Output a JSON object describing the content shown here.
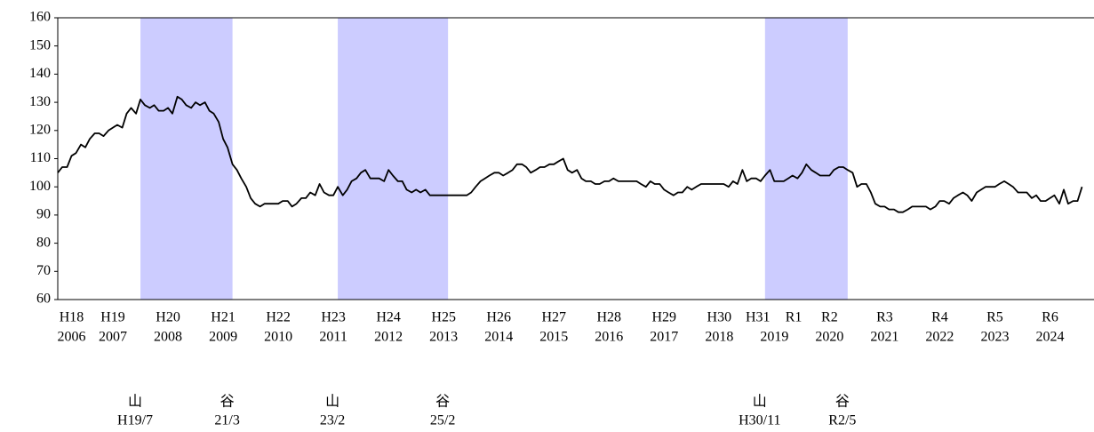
{
  "chart_data": {
    "type": "line",
    "xlim": [
      2006,
      2024.75
    ],
    "ylim": [
      60,
      160
    ],
    "yticks": [
      60,
      70,
      80,
      90,
      100,
      110,
      120,
      130,
      140,
      150,
      160
    ],
    "xticks": [
      {
        "value": 2006.25,
        "label": "2006"
      },
      {
        "value": 2007,
        "label": "2007"
      },
      {
        "value": 2008,
        "label": "2008"
      },
      {
        "value": 2009,
        "label": "2009"
      },
      {
        "value": 2010,
        "label": "2010"
      },
      {
        "value": 2011,
        "label": "2011"
      },
      {
        "value": 2012,
        "label": "2012"
      },
      {
        "value": 2013,
        "label": "2013"
      },
      {
        "value": 2014,
        "label": "2014"
      },
      {
        "value": 2015,
        "label": "2015"
      },
      {
        "value": 2016,
        "label": "2016"
      },
      {
        "value": 2017,
        "label": "2017"
      },
      {
        "value": 2018,
        "label": "2018"
      },
      {
        "value": 2019,
        "label": "2019"
      },
      {
        "value": 2020,
        "label": "2020"
      },
      {
        "value": 2021,
        "label": "2021"
      },
      {
        "value": 2022,
        "label": "2022"
      },
      {
        "value": 2023,
        "label": "2023"
      },
      {
        "value": 2024,
        "label": "2024"
      }
    ],
    "era_ticks": [
      {
        "value": 2006.25,
        "label": "H18"
      },
      {
        "value": 2007,
        "label": "H19"
      },
      {
        "value": 2008,
        "label": "H20"
      },
      {
        "value": 2009,
        "label": "H21"
      },
      {
        "value": 2010,
        "label": "H22"
      },
      {
        "value": 2011,
        "label": "H23"
      },
      {
        "value": 2012,
        "label": "H24"
      },
      {
        "value": 2013,
        "label": "H25"
      },
      {
        "value": 2014,
        "label": "H26"
      },
      {
        "value": 2015,
        "label": "H27"
      },
      {
        "value": 2016,
        "label": "H28"
      },
      {
        "value": 2017,
        "label": "H29"
      },
      {
        "value": 2018,
        "label": "H30"
      },
      {
        "value": 2018.7,
        "label": "H31"
      },
      {
        "value": 2019.35,
        "label": "R1"
      },
      {
        "value": 2020,
        "label": "R2"
      },
      {
        "value": 2021,
        "label": "R3"
      },
      {
        "value": 2022,
        "label": "R4"
      },
      {
        "value": 2023,
        "label": "R5"
      },
      {
        "value": 2024,
        "label": "R6"
      }
    ],
    "shaded_periods": [
      {
        "start": 2007.5,
        "end": 2009.17,
        "start_mark": "山",
        "start_label": "H19/7",
        "end_mark": "谷",
        "end_label": "21/3"
      },
      {
        "start": 2011.08,
        "end": 2013.08,
        "start_mark": "山",
        "start_label": "23/2",
        "end_mark": "谷",
        "end_label": "25/2"
      },
      {
        "start": 2018.83,
        "end": 2020.33,
        "start_mark": "山",
        "start_label": "H30/11",
        "end_mark": "谷",
        "end_label": "R2/5"
      }
    ],
    "shade_color": "#ccccff",
    "series": [
      {
        "color": "#000000",
        "x": [
          2006,
          2006.08,
          2006.17,
          2006.25,
          2006.33,
          2006.42,
          2006.5,
          2006.58,
          2006.67,
          2006.75,
          2006.83,
          2006.92,
          2007,
          2007.08,
          2007.17,
          2007.25,
          2007.33,
          2007.42,
          2007.5,
          2007.58,
          2007.67,
          2007.75,
          2007.83,
          2007.92,
          2008,
          2008.08,
          2008.17,
          2008.25,
          2008.33,
          2008.42,
          2008.5,
          2008.58,
          2008.67,
          2008.75,
          2008.83,
          2008.92,
          2009,
          2009.08,
          2009.17,
          2009.25,
          2009.33,
          2009.42,
          2009.5,
          2009.58,
          2009.67,
          2009.75,
          2009.83,
          2009.92,
          2010,
          2010.08,
          2010.17,
          2010.25,
          2010.33,
          2010.42,
          2010.5,
          2010.58,
          2010.67,
          2010.75,
          2010.83,
          2010.92,
          2011,
          2011.08,
          2011.17,
          2011.25,
          2011.33,
          2011.42,
          2011.5,
          2011.58,
          2011.67,
          2011.75,
          2011.83,
          2011.92,
          2012,
          2012.08,
          2012.17,
          2012.25,
          2012.33,
          2012.42,
          2012.5,
          2012.58,
          2012.67,
          2012.75,
          2012.83,
          2012.92,
          2013,
          2013.08,
          2013.17,
          2013.25,
          2013.33,
          2013.42,
          2013.5,
          2013.58,
          2013.67,
          2013.75,
          2013.83,
          2013.92,
          2014,
          2014.08,
          2014.17,
          2014.25,
          2014.33,
          2014.42,
          2014.5,
          2014.58,
          2014.67,
          2014.75,
          2014.83,
          2014.92,
          2015,
          2015.08,
          2015.17,
          2015.25,
          2015.33,
          2015.42,
          2015.5,
          2015.58,
          2015.67,
          2015.75,
          2015.83,
          2015.92,
          2016,
          2016.08,
          2016.17,
          2016.25,
          2016.33,
          2016.42,
          2016.5,
          2016.58,
          2016.67,
          2016.75,
          2016.83,
          2016.92,
          2017,
          2017.08,
          2017.17,
          2017.25,
          2017.33,
          2017.42,
          2017.5,
          2017.58,
          2017.67,
          2017.75,
          2017.83,
          2017.92,
          2018,
          2018.08,
          2018.17,
          2018.25,
          2018.33,
          2018.42,
          2018.5,
          2018.58,
          2018.67,
          2018.75,
          2018.83,
          2018.92,
          2019,
          2019.08,
          2019.17,
          2019.25,
          2019.33,
          2019.42,
          2019.5,
          2019.58,
          2019.67,
          2019.75,
          2019.83,
          2019.92,
          2020,
          2020.08,
          2020.17,
          2020.25,
          2020.33,
          2020.42,
          2020.5,
          2020.58,
          2020.67,
          2020.75,
          2020.83,
          2020.92,
          2021,
          2021.08,
          2021.17,
          2021.25,
          2021.33,
          2021.42,
          2021.5,
          2021.58,
          2021.67,
          2021.75,
          2021.83,
          2021.92,
          2022,
          2022.08,
          2022.17,
          2022.25,
          2022.33,
          2022.42,
          2022.5,
          2022.58,
          2022.67,
          2022.75,
          2022.83,
          2022.92,
          2023,
          2023.08,
          2023.17,
          2023.25,
          2023.33,
          2023.42,
          2023.5,
          2023.58,
          2023.67,
          2023.75,
          2023.83,
          2023.92,
          2024,
          2024.08,
          2024.17,
          2024.25,
          2024.33,
          2024.42,
          2024.5,
          2024.58
        ],
        "values": [
          105,
          107,
          107,
          111,
          112,
          115,
          114,
          117,
          119,
          119,
          118,
          120,
          121,
          122,
          121,
          126,
          128,
          126,
          131,
          129,
          128,
          129,
          127,
          127,
          128,
          126,
          132,
          131,
          129,
          128,
          130,
          129,
          130,
          127,
          126,
          123,
          117,
          114,
          108,
          106,
          103,
          100,
          96,
          94,
          93,
          94,
          94,
          94,
          94,
          95,
          95,
          93,
          94,
          96,
          96,
          98,
          97,
          101,
          98,
          97,
          97,
          100,
          97,
          99,
          102,
          103,
          105,
          106,
          103,
          103,
          103,
          102,
          106,
          104,
          102,
          102,
          99,
          98,
          99,
          98,
          99,
          97,
          97,
          97,
          97,
          97,
          97,
          97,
          97,
          97,
          98,
          100,
          102,
          103,
          104,
          105,
          105,
          104,
          105,
          106,
          108,
          108,
          107,
          105,
          106,
          107,
          107,
          108,
          108,
          109,
          110,
          106,
          105,
          106,
          103,
          102,
          102,
          101,
          101,
          102,
          102,
          103,
          102,
          102,
          102,
          102,
          102,
          101,
          100,
          102,
          101,
          101,
          99,
          98,
          97,
          98,
          98,
          100,
          99,
          100,
          101,
          101,
          101,
          101,
          101,
          101,
          100,
          102,
          101,
          106,
          102,
          103,
          103,
          102,
          104,
          106,
          102,
          102,
          102,
          103,
          104,
          103,
          105,
          108,
          106,
          105,
          104,
          104,
          104,
          106,
          107,
          107,
          106,
          105,
          100,
          101,
          101,
          98,
          94,
          93,
          93,
          92,
          92,
          91,
          91,
          92,
          93,
          93,
          93,
          93,
          92,
          93,
          95,
          95,
          94,
          96,
          97,
          98,
          97,
          95,
          98,
          99,
          100,
          100,
          100,
          101,
          102,
          101,
          100,
          98,
          98,
          98,
          96,
          97,
          95,
          95,
          96,
          97,
          94,
          99,
          94,
          95,
          95,
          100
        ]
      }
    ]
  }
}
